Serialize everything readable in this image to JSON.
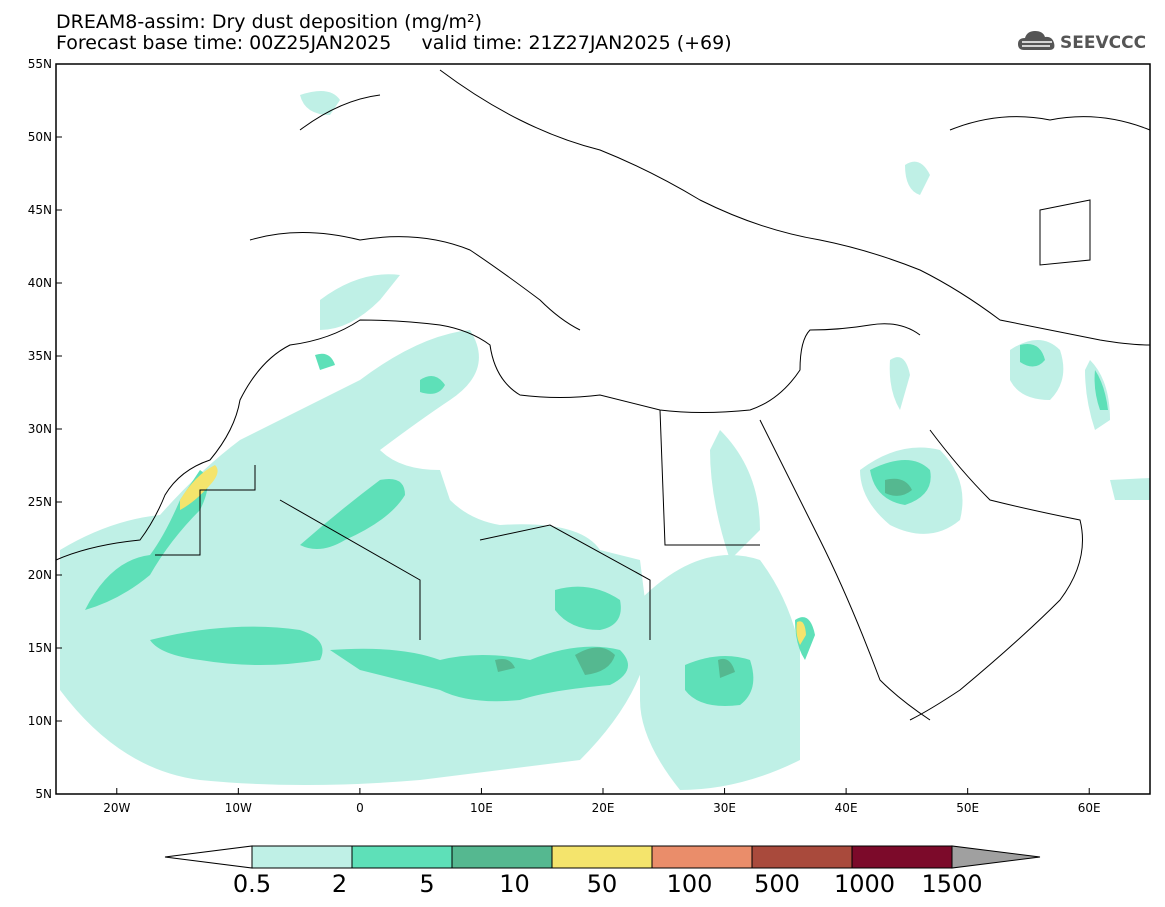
{
  "title": {
    "line1": "DREAM8-assim: Dry dust deposition (mg/m²)",
    "line2": "Forecast base time: 00Z25JAN2025     valid time: 21Z27JAN2025 (+69)"
  },
  "logo": {
    "text": "SEEVCCC",
    "icon": "cloud-icon"
  },
  "map": {
    "lon_range": [
      -25,
      65
    ],
    "lat_range": [
      5,
      55
    ],
    "lat_ticks": [
      "55N",
      "50N",
      "45N",
      "40N",
      "35N",
      "30N",
      "25N",
      "20N",
      "15N",
      "10N",
      "5N"
    ],
    "lon_ticks": [
      "20W",
      "10W",
      "0",
      "10E",
      "20E",
      "30E",
      "40E",
      "50E",
      "60E"
    ]
  },
  "colorbar": {
    "labels": [
      "0.5",
      "2",
      "5",
      "10",
      "50",
      "100",
      "500",
      "1000",
      "1500"
    ],
    "colors": [
      "#bff0e6",
      "#5ee0b8",
      "#55b890",
      "#f4e46c",
      "#ea8d6a",
      "#a94a3c",
      "#7c0a2a",
      "#8a6a9a",
      "#a0a0a0"
    ]
  }
}
